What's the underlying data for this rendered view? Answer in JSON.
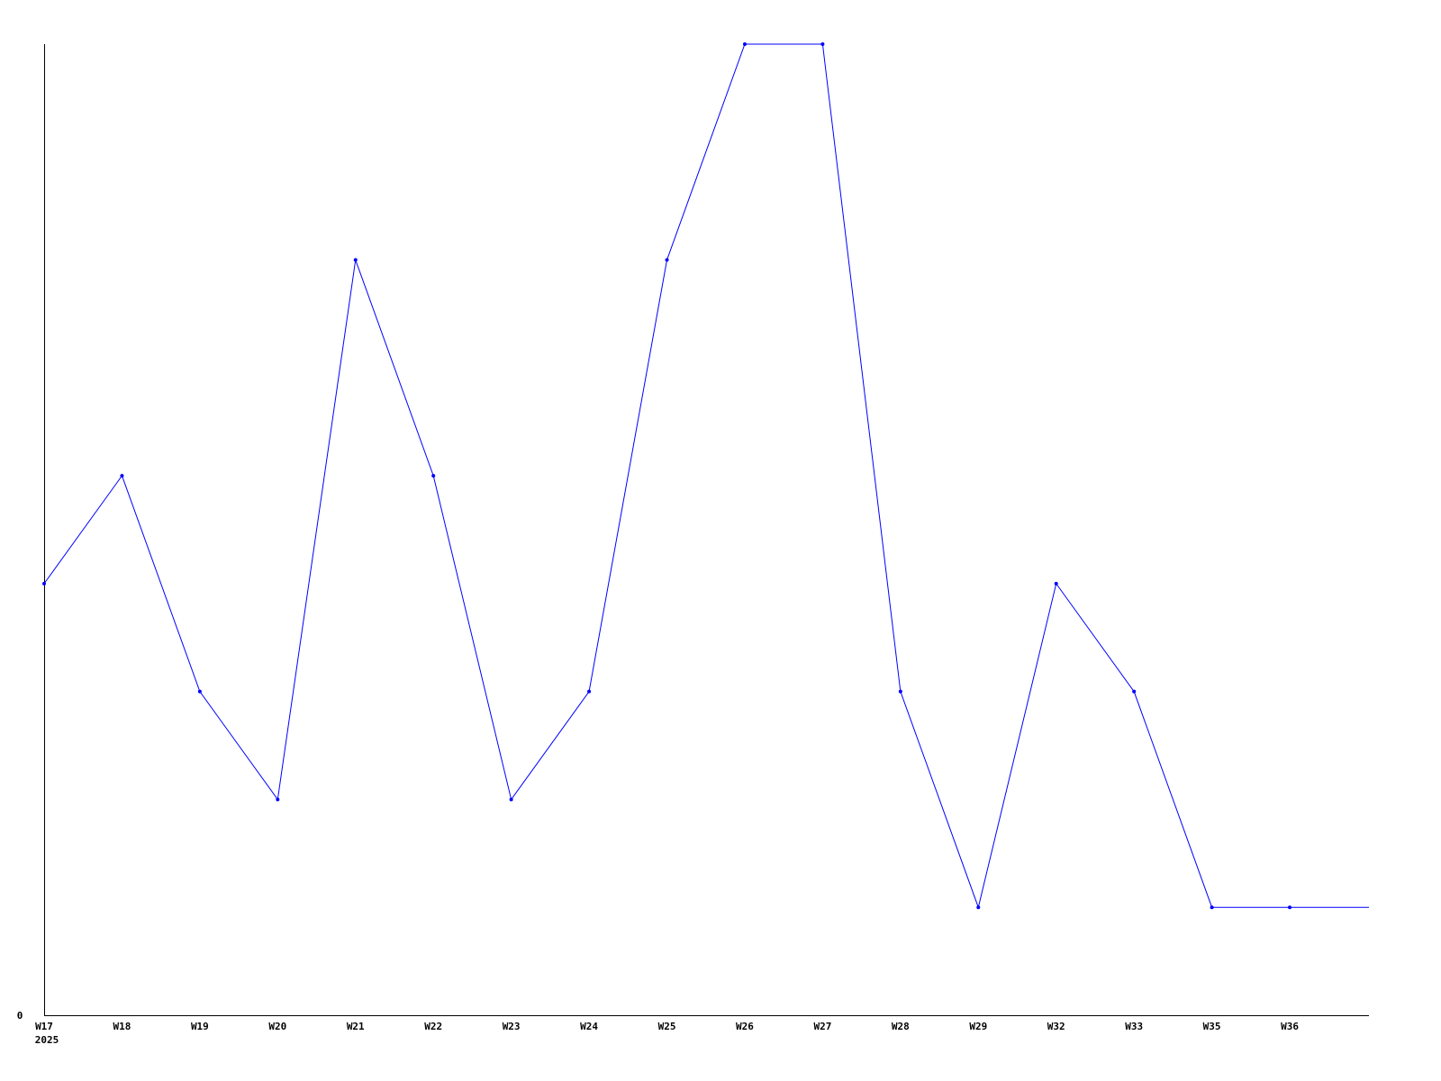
{
  "chart_data": {
    "type": "line",
    "title": "",
    "xlabel": "",
    "ylabel": "",
    "categories": [
      "W17",
      "W18",
      "W19",
      "W20",
      "W21",
      "W22",
      "W23",
      "W24",
      "W25",
      "W26",
      "W27",
      "W28",
      "W29",
      "W32",
      "W33",
      "W35",
      "W36"
    ],
    "year_label": "2025",
    "y_tick_labels": [
      "0"
    ],
    "ylim": [
      0,
      9
    ],
    "grid": false,
    "series": [
      {
        "values": [
          4,
          5,
          3,
          2,
          7,
          5,
          2,
          3,
          7,
          9,
          9,
          3,
          1,
          4,
          3,
          1,
          1
        ],
        "color": "#0000ff"
      }
    ],
    "line_continues_right_value": 1
  }
}
